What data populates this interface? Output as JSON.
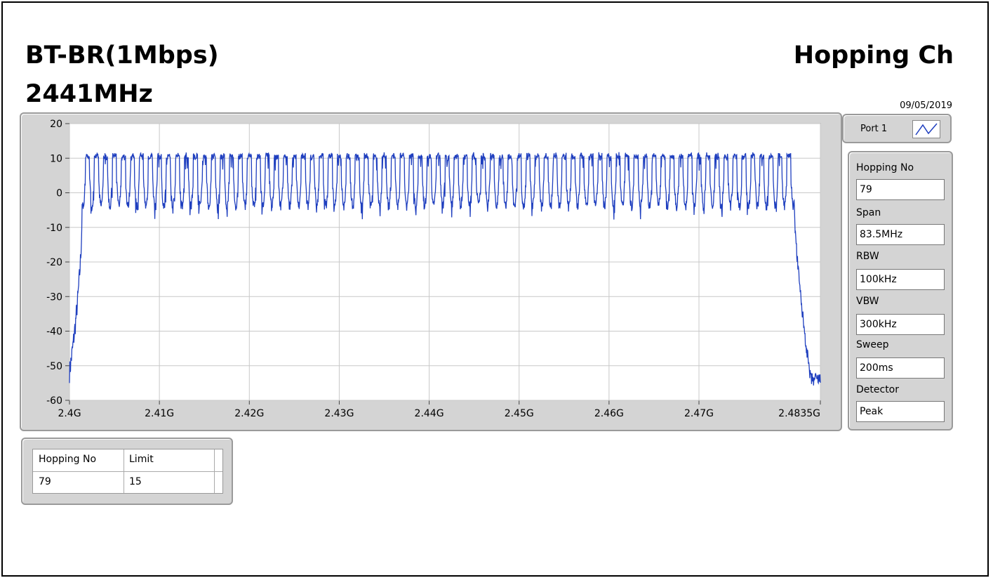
{
  "header": {
    "mode": "BT-BR(1Mbps)",
    "frequency": "2441MHz",
    "test_name": "Hopping Ch",
    "date": "09/05/2019"
  },
  "port": {
    "label": "Port 1",
    "icon": "waveform-icon"
  },
  "settings": {
    "hopping_no_label": "Hopping No",
    "hopping_no_value": "79",
    "span_label": "Span",
    "span_value": "83.5MHz",
    "rbw_label": "RBW",
    "rbw_value": "100kHz",
    "vbw_label": "VBW",
    "vbw_value": "300kHz",
    "sweep_label": "Sweep",
    "sweep_value": "200ms",
    "detector_label": "Detector",
    "detector_value": "Peak"
  },
  "result": {
    "headers": [
      "Hopping No",
      "Limit"
    ],
    "values": [
      "79",
      "15"
    ]
  },
  "colors": {
    "trace": "#1f3fbf",
    "grid": "#c8c8c8",
    "panel": "#d4d4d4"
  },
  "chart_data": {
    "type": "line",
    "xlim": [
      2.4,
      2.4835
    ],
    "ylim": [
      -60,
      20
    ],
    "x_tick_values": [
      2.4,
      2.41,
      2.42,
      2.43,
      2.44,
      2.45,
      2.46,
      2.47,
      2.4835
    ],
    "x_tick_labels": [
      "2.4G",
      "2.41G",
      "2.42G",
      "2.43G",
      "2.44G",
      "2.45G",
      "2.46G",
      "2.47G",
      "2.4835G"
    ],
    "y_ticks": [
      20,
      10,
      0,
      -10,
      -20,
      -30,
      -40,
      -50,
      -60
    ],
    "grid": true,
    "series": [
      {
        "channels": 79,
        "first_channel_freq": 2.402,
        "channel_spacing": 0.001,
        "peak_level": 10.5,
        "trough_level": -4,
        "out_of_band_level_low": -52,
        "out_of_band_level_high": -54
      }
    ]
  }
}
